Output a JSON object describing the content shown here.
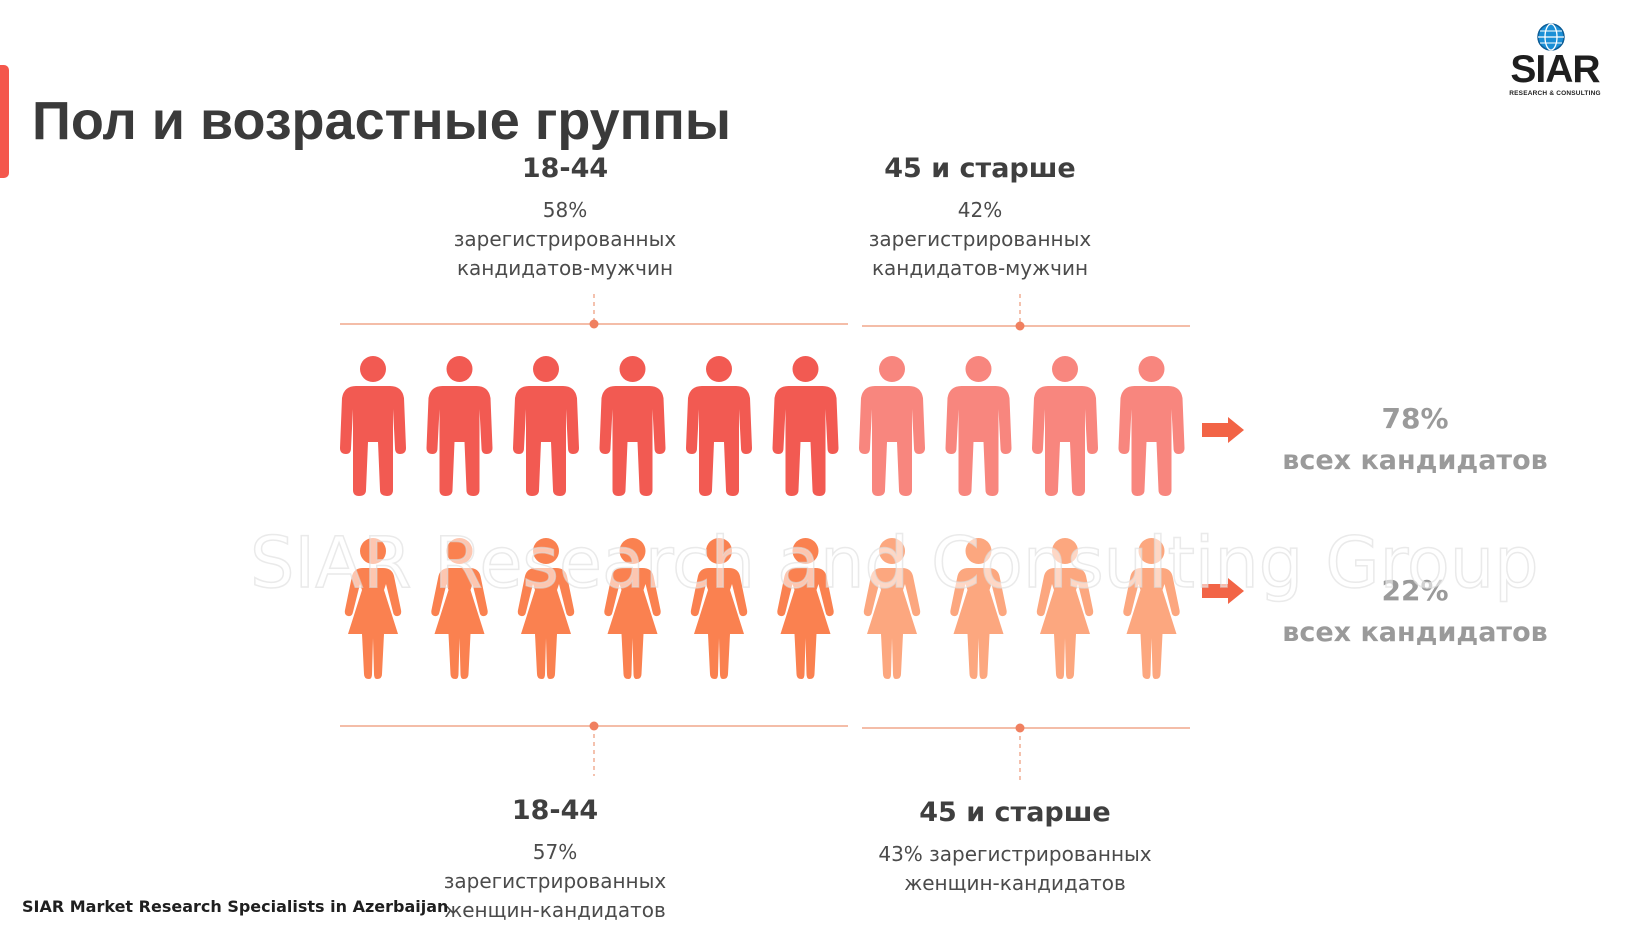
{
  "slide": {
    "title": "Пол и возрастные группы",
    "footer": "SIAR Market Research Specialists in Azerbaijan",
    "watermark": "SIAR Research and Consulting Group"
  },
  "logo": {
    "name": "SIAR",
    "subtitle": "RESEARCH & CONSULTING",
    "icon": "globe-icon"
  },
  "men": {
    "icon": "male-person-icon",
    "groups": [
      {
        "age": "18-44",
        "line1": "58%",
        "line2": "зарегистрированных",
        "line3": "кандидатов-мужчин"
      },
      {
        "age": "45 и старше",
        "line1": "42%",
        "line2": "зарегистрированных",
        "line3": "кандидатов-мужчин"
      }
    ],
    "total_pct": "78%",
    "total_text": "всех кандидатов",
    "counts": {
      "young": 6,
      "older": 4
    },
    "colors": {
      "young": "#f25a52",
      "older": "#f8867e"
    }
  },
  "women": {
    "icon": "female-person-icon",
    "groups": [
      {
        "age": "18-44",
        "line1": "57% зарегистрированных",
        "line2": "женщин-кандидатов"
      },
      {
        "age": "45 и старше",
        "line1": "43% зарегистрированных",
        "line2": "женщин-кандидатов"
      }
    ],
    "total_pct": "22%",
    "total_text": "всех кандидатов",
    "counts": {
      "young": 6,
      "older": 4
    },
    "colors": {
      "young": "#fa8150",
      "older": "#fca77f"
    }
  },
  "colors": {
    "accent": "#f4574c",
    "arrow": "#f26446",
    "connector": "#f0a78c",
    "connector_dot": "#f08060",
    "stat_text": "#9a9a9a"
  }
}
